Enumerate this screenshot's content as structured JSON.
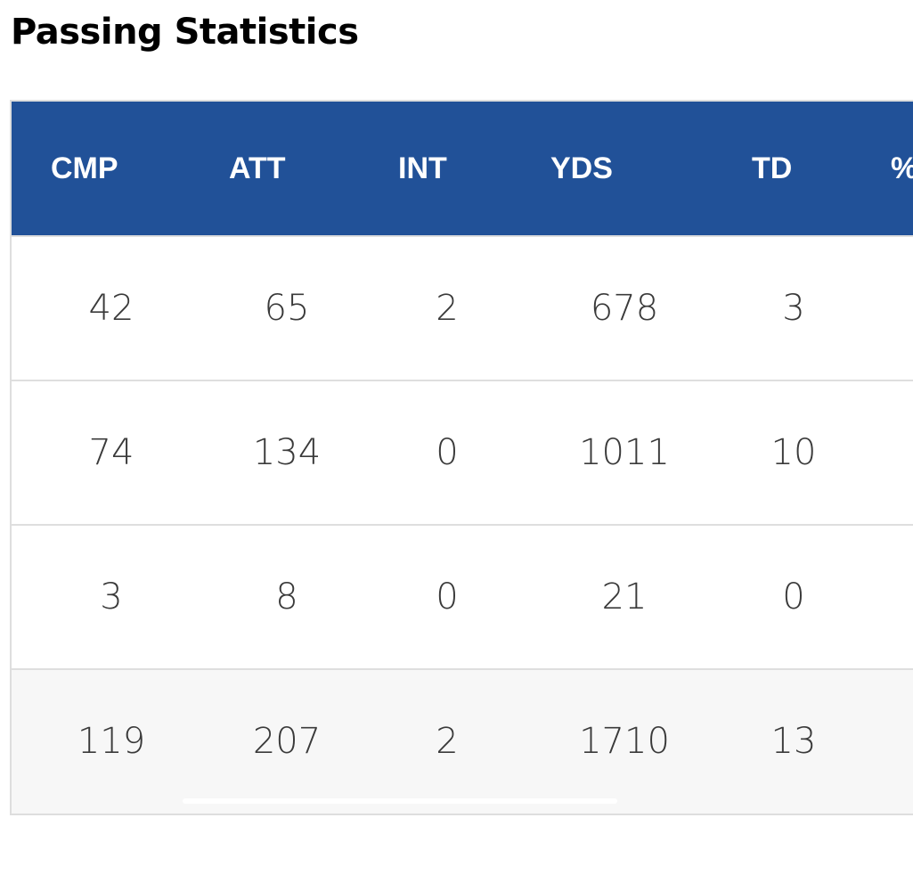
{
  "page": {
    "title": "Passing Statistics"
  },
  "table": {
    "columns": [
      "CMP",
      "ATT",
      "INT",
      "YDS",
      "TD",
      "%"
    ],
    "rows": [
      [
        "42",
        "65",
        "2",
        "678",
        "3"
      ],
      [
        "74",
        "134",
        "0",
        "1011",
        "10"
      ],
      [
        "3",
        "8",
        "0",
        "21",
        "0"
      ]
    ],
    "totals": [
      "119",
      "207",
      "2",
      "1710",
      "13"
    ]
  },
  "colors": {
    "header_bg": "#215198",
    "header_text": "#ffffff",
    "border": "#dedede",
    "totals_bg": "#f7f7f7",
    "cell_text": "#3a3a3a"
  }
}
